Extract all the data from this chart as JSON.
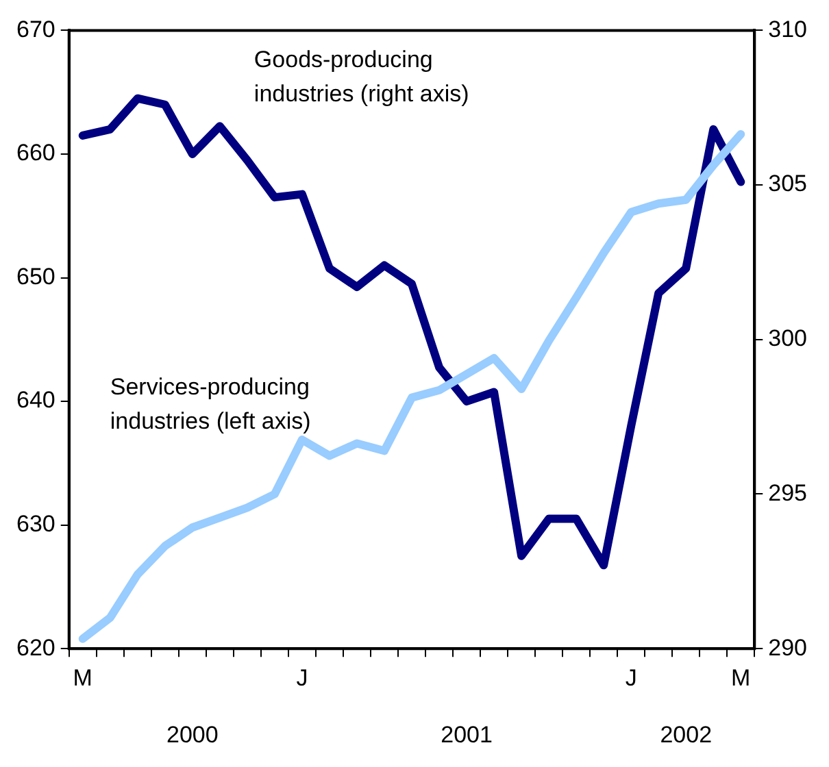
{
  "chart_data": {
    "type": "line",
    "categories": [
      "M",
      null,
      null,
      null,
      null,
      null,
      null,
      null,
      "J",
      null,
      null,
      null,
      null,
      null,
      null,
      null,
      null,
      null,
      null,
      null,
      "J",
      null,
      null,
      null,
      "M"
    ],
    "series": [
      {
        "name": "Services-producing industries (left axis)",
        "color": "#99ccff",
        "values": [
          620.8,
          622.5,
          626.0,
          628.3,
          629.8,
          630.6,
          631.4,
          632.5,
          636.9,
          635.6,
          636.6,
          636.0,
          640.3,
          640.9,
          642.2,
          643.5,
          641.0,
          644.9,
          648.4,
          652.0,
          655.3,
          656.0,
          656.3,
          659.1,
          661.6
        ]
      },
      {
        "name": "Goods-producing industries (right axis)",
        "color": "#000080",
        "axis": "y2",
        "values": [
          306.6,
          306.8,
          307.8,
          307.6,
          306.0,
          306.9,
          305.8,
          304.6,
          304.7,
          302.3,
          301.7,
          302.4,
          301.8,
          299.1,
          298.0,
          298.3,
          293.0,
          294.2,
          294.2,
          292.7,
          297.2,
          301.5,
          302.3,
          306.8,
          305.1
        ]
      }
    ],
    "ylim": [
      620,
      670
    ],
    "yticks": [
      620,
      630,
      640,
      650,
      660,
      670
    ],
    "y2lim": [
      290,
      310
    ],
    "y2ticks": [
      290,
      295,
      300,
      305,
      310
    ],
    "annotations": [
      "2000",
      "2001",
      "2002"
    ],
    "grid": false,
    "legend": false,
    "marker": "none",
    "line_style": "solid"
  }
}
